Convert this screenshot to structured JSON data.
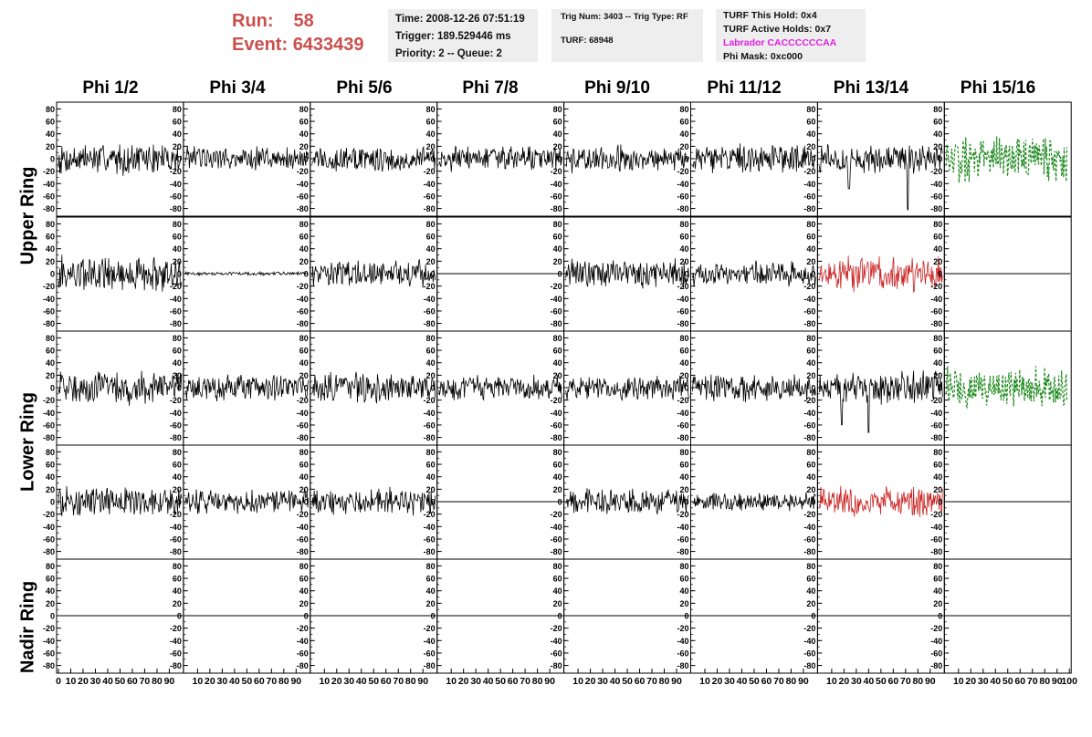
{
  "header": {
    "run_label": "Run:",
    "run_value": "58",
    "event_label": "Event:",
    "event_value": "6433439",
    "time": "Time: 2008-12-26 07:51:19",
    "trigger": "Trigger: 189.529446 ms",
    "priority": "Priority: 2 -- Queue: 2",
    "trig_num": "Trig Num: 3403 -- Trig Type: RF",
    "turf": "TURF: 68948",
    "turf_hold": "TURF This Hold: 0x4",
    "turf_active": "TURF Active Holds: 0x7",
    "labrador": "Labrador CACCCCCCAA",
    "phi_mask": "Phi Mask: 0xc000"
  },
  "columns": [
    "Phi 1/2",
    "Phi 3/4",
    "Phi 5/6",
    "Phi 7/8",
    "Phi 9/10",
    "Phi 11/12",
    "Phi 13/14",
    "Phi 15/16"
  ],
  "row_labels": [
    "Upper Ring",
    "Lower Ring",
    "Nadir Ring"
  ],
  "colors": {
    "header_red": "#c9504c",
    "trace_black": "#000000",
    "trace_red": "#cc2222",
    "trace_green": "#228b22",
    "magenta": "#e020e0"
  },
  "chart_data": {
    "type": "line",
    "x_range": [
      0,
      100
    ],
    "y_range": [
      -85,
      85
    ],
    "y_ticks": [
      -80,
      -60,
      -40,
      -20,
      0,
      20,
      40,
      60,
      80
    ],
    "x_ticks": [
      0,
      10,
      20,
      30,
      40,
      50,
      60,
      70,
      80,
      90,
      100
    ],
    "rows": [
      [
        {
          "style": "black",
          "amp": 28,
          "spikes": []
        },
        {
          "style": "black",
          "amp": 22,
          "spikes": []
        },
        {
          "style": "black",
          "amp": 24,
          "spikes": []
        },
        {
          "style": "black",
          "amp": 22,
          "spikes": []
        },
        {
          "style": "black",
          "amp": 24,
          "spikes": []
        },
        {
          "style": "black",
          "amp": 26,
          "spikes": []
        },
        {
          "style": "black",
          "amp": 26,
          "spikes": [
            [
              72,
              -82
            ],
            [
              24,
              -48
            ]
          ]
        },
        {
          "style": "green",
          "amp": 42,
          "spikes": []
        }
      ],
      [
        {
          "style": "black",
          "amp": 32,
          "spikes": []
        },
        {
          "style": "black",
          "amp": 3,
          "spikes": []
        },
        {
          "style": "black",
          "amp": 24,
          "spikes": []
        },
        {
          "style": "flat",
          "amp": 0,
          "spikes": []
        },
        {
          "style": "black",
          "amp": 26,
          "spikes": []
        },
        {
          "style": "black",
          "amp": 22,
          "spikes": []
        },
        {
          "style": "red",
          "amp": 32,
          "spikes": []
        },
        {
          "style": "flat",
          "amp": 0,
          "spikes": []
        }
      ],
      [
        {
          "style": "black",
          "amp": 30,
          "spikes": []
        },
        {
          "style": "black",
          "amp": 24,
          "spikes": []
        },
        {
          "style": "black",
          "amp": 26,
          "spikes": []
        },
        {
          "style": "black",
          "amp": 22,
          "spikes": []
        },
        {
          "style": "black",
          "amp": 22,
          "spikes": []
        },
        {
          "style": "black",
          "amp": 26,
          "spikes": []
        },
        {
          "style": "black",
          "amp": 30,
          "spikes": [
            [
              40,
              -72
            ],
            [
              18,
              -60
            ]
          ]
        },
        {
          "style": "green",
          "amp": 36,
          "spikes": []
        }
      ],
      [
        {
          "style": "black",
          "amp": 26,
          "spikes": []
        },
        {
          "style": "black",
          "amp": 22,
          "spikes": []
        },
        {
          "style": "black",
          "amp": 24,
          "spikes": []
        },
        {
          "style": "flat",
          "amp": 0,
          "spikes": []
        },
        {
          "style": "black",
          "amp": 24,
          "spikes": []
        },
        {
          "style": "black",
          "amp": 16,
          "spikes": []
        },
        {
          "style": "red",
          "amp": 28,
          "spikes": []
        },
        {
          "style": "flat",
          "amp": 0,
          "spikes": []
        }
      ],
      [
        {
          "style": "flat",
          "amp": 0,
          "spikes": []
        },
        {
          "style": "flat",
          "amp": 0,
          "spikes": []
        },
        {
          "style": "flat",
          "amp": 0,
          "spikes": []
        },
        {
          "style": "flat",
          "amp": 0,
          "spikes": []
        },
        {
          "style": "flat",
          "amp": 0,
          "spikes": []
        },
        {
          "style": "flat",
          "amp": 0,
          "spikes": []
        },
        {
          "style": "flat",
          "amp": 0,
          "spikes": []
        },
        {
          "style": "flat",
          "amp": 0,
          "spikes": []
        }
      ]
    ]
  }
}
